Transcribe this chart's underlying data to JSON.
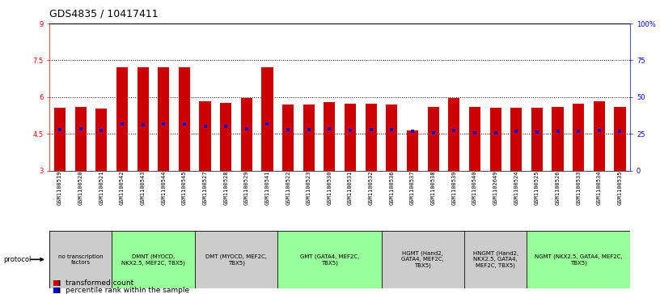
{
  "title": "GDS4835 / 10417411",
  "samples": [
    "GSM1100519",
    "GSM1100520",
    "GSM1100521",
    "GSM1100542",
    "GSM1100543",
    "GSM1100544",
    "GSM1100545",
    "GSM1100527",
    "GSM1100528",
    "GSM1100529",
    "GSM1100541",
    "GSM1100522",
    "GSM1100523",
    "GSM1100530",
    "GSM1100531",
    "GSM1100532",
    "GSM1100536",
    "GSM1100537",
    "GSM1100538",
    "GSM1100539",
    "GSM1100540",
    "GSM1102649",
    "GSM1100524",
    "GSM1100525",
    "GSM1100526",
    "GSM1100533",
    "GSM1100534",
    "GSM1100535"
  ],
  "bar_heights": [
    5.55,
    5.6,
    5.53,
    7.22,
    7.22,
    7.23,
    7.22,
    5.83,
    5.75,
    5.97,
    7.22,
    5.68,
    5.68,
    5.78,
    5.73,
    5.73,
    5.68,
    4.65,
    5.6,
    5.97,
    5.6,
    5.55,
    5.55,
    5.55,
    5.6,
    5.73,
    5.83,
    5.6
  ],
  "percentile_values": [
    4.67,
    4.7,
    4.65,
    4.9,
    4.88,
    4.9,
    4.9,
    4.8,
    4.8,
    4.7,
    4.9,
    4.68,
    4.67,
    4.7,
    4.65,
    4.67,
    4.67,
    4.6,
    4.55,
    4.65,
    4.55,
    4.55,
    4.62,
    4.58,
    4.6,
    4.62,
    4.63,
    4.62
  ],
  "y_min": 3.0,
  "y_max": 9.0,
  "y_ticks_left": [
    3.0,
    4.5,
    6.0,
    7.5,
    9.0
  ],
  "dotted_lines": [
    4.5,
    6.0,
    7.5
  ],
  "groups": [
    {
      "label": "no transcription\nfactors",
      "start": 0,
      "end": 3,
      "color": "#cccccc"
    },
    {
      "label": "DMNT (MYOCD,\nNKX2.5, MEF2C, TBX5)",
      "start": 3,
      "end": 7,
      "color": "#99ff99"
    },
    {
      "label": "DMT (MYOCD, MEF2C,\nTBX5)",
      "start": 7,
      "end": 11,
      "color": "#cccccc"
    },
    {
      "label": "GMT (GATA4, MEF2C,\nTBX5)",
      "start": 11,
      "end": 16,
      "color": "#99ff99"
    },
    {
      "label": "HGMT (Hand2,\nGATA4, MEF2C,\nTBX5)",
      "start": 16,
      "end": 20,
      "color": "#cccccc"
    },
    {
      "label": "HNGMT (Hand2,\nNKX2.5, GATA4,\nMEF2C, TBX5)",
      "start": 20,
      "end": 23,
      "color": "#cccccc"
    },
    {
      "label": "NGMT (NKX2.5, GATA4, MEF2C,\nTBX5)",
      "start": 23,
      "end": 28,
      "color": "#99ff99"
    }
  ],
  "bar_color": "#cc0000",
  "blue_color": "#0000cc",
  "title_fontsize": 9,
  "tick_fontsize": 6,
  "sample_fontsize": 5,
  "group_fontsize": 5,
  "legend_fontsize": 6.5
}
